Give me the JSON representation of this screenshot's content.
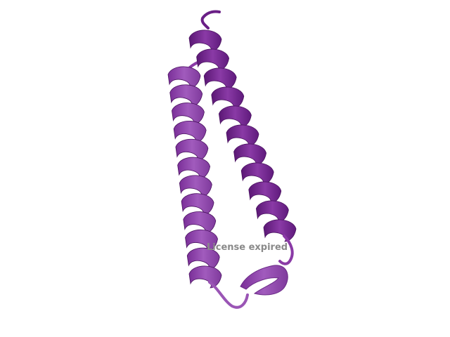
{
  "scene": {
    "subject": "protein-ribbon-two-helix-hairpin",
    "colors": {
      "background": "#ffffff",
      "helix_dark": "#6a1f86",
      "helix_mid": "#8a3aa6",
      "helix_light": "#a15bbd",
      "helix_edge": "#4a1260",
      "loop": "#9a55b5"
    }
  },
  "watermark": {
    "text": "License expired"
  }
}
